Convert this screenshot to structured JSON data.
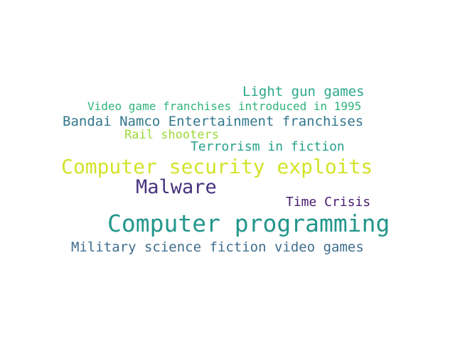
{
  "words": [
    {
      "text": "Light gun games",
      "color": "#2aa98a"
    },
    {
      "text": "Video game franchises introduced in 1995",
      "color": "#2fb47c"
    },
    {
      "text": "Bandai Namco Entertainment franchises",
      "color": "#32788d"
    },
    {
      "text": "Rail shooters",
      "color": "#9ed93a"
    },
    {
      "text": "Terrorism in fiction",
      "color": "#27a18a"
    },
    {
      "text": "Computer security exploits",
      "color": "#d3e32a"
    },
    {
      "text": "Malware",
      "color": "#46337e"
    },
    {
      "text": "Time Crisis",
      "color": "#481a6c"
    },
    {
      "text": "Computer programming",
      "color": "#23968b"
    },
    {
      "text": "Military science fiction video games",
      "color": "#3e6e8e"
    }
  ]
}
